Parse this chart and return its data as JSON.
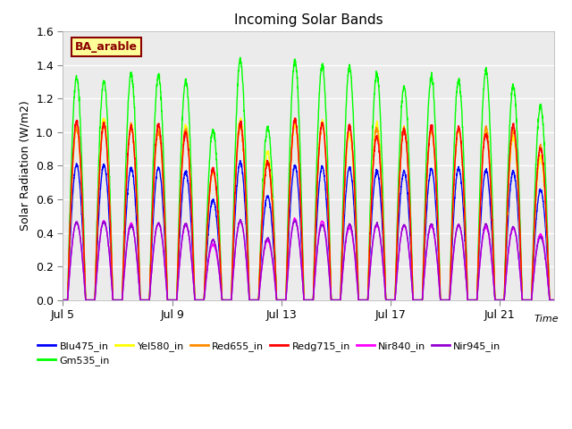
{
  "title": "Incoming Solar Bands",
  "xlabel": "Time",
  "ylabel": "Solar Radiation (W/m2)",
  "ylim": [
    0.0,
    1.6
  ],
  "yticks": [
    0.0,
    0.2,
    0.4,
    0.6,
    0.8,
    1.0,
    1.2,
    1.4,
    1.6
  ],
  "start_day": 5,
  "num_days": 18,
  "samples_per_day": 144,
  "annotation_text": "BA_arable",
  "annotation_color": "#8B0000",
  "annotation_bg": "#FFFF99",
  "series": [
    {
      "name": "Blu475_in",
      "color": "#0000FF",
      "base_peak": 0.8,
      "lw": 1.0,
      "sigma": 0.18
    },
    {
      "name": "Gm535_in",
      "color": "#00FF00",
      "base_peak": 1.37,
      "lw": 1.0,
      "sigma": 0.2
    },
    {
      "name": "Yel580_in",
      "color": "#FFFF00",
      "base_peak": 1.05,
      "lw": 1.0,
      "sigma": 0.19
    },
    {
      "name": "Red655_in",
      "color": "#FF8C00",
      "base_peak": 1.05,
      "lw": 1.0,
      "sigma": 0.19
    },
    {
      "name": "Redg715_in",
      "color": "#FF0000",
      "base_peak": 1.05,
      "lw": 1.0,
      "sigma": 0.19
    },
    {
      "name": "Nir840_in",
      "color": "#FF00FF",
      "base_peak": 0.46,
      "lw": 1.0,
      "sigma": 0.19
    },
    {
      "name": "Nir945_in",
      "color": "#9400D3",
      "base_peak": 0.46,
      "lw": 1.0,
      "sigma": 0.19
    }
  ],
  "day_peak_scale": [
    1.0,
    1.0,
    0.98,
    0.98,
    0.97,
    0.75,
    1.02,
    0.78,
    1.01,
    1.0,
    0.97,
    0.96,
    0.97,
    0.97,
    0.96,
    0.95,
    0.95,
    0.83
  ],
  "bg_color": "#EBEBEB",
  "fig_bg": "#FFFFFF",
  "xtick_labels": [
    "Jul 5",
    "Jul 9",
    "Jul 13",
    "Jul 17",
    "Jul 21"
  ],
  "xtick_days": [
    0,
    4,
    8,
    12,
    16
  ]
}
